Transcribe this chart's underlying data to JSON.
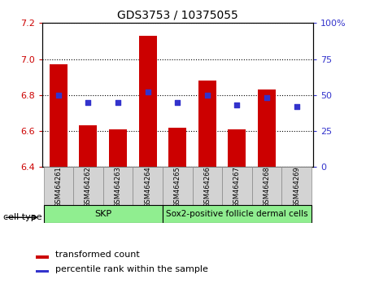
{
  "title": "GDS3753 / 10375055",
  "samples": [
    "GSM464261",
    "GSM464262",
    "GSM464263",
    "GSM464264",
    "GSM464265",
    "GSM464266",
    "GSM464267",
    "GSM464268",
    "GSM464269"
  ],
  "transformed_count": [
    6.97,
    6.63,
    6.61,
    7.13,
    6.62,
    6.88,
    6.61,
    6.83,
    6.4
  ],
  "percentile_rank": [
    50,
    45,
    45,
    52,
    45,
    50,
    43,
    48,
    42
  ],
  "ylim_left": [
    6.4,
    7.2
  ],
  "ylim_right": [
    0,
    100
  ],
  "left_yticks": [
    6.4,
    6.6,
    6.8,
    7.0,
    7.2
  ],
  "right_yticks": [
    0,
    25,
    50,
    75,
    100
  ],
  "right_yticklabels": [
    "0",
    "25",
    "50",
    "75",
    "100%"
  ],
  "bar_color": "#cc0000",
  "dot_color": "#3333cc",
  "bar_bottom": 6.4,
  "skp_count": 4,
  "cell_type_labels": [
    "SKP",
    "Sox2-positive follicle dermal cells"
  ],
  "cell_type_color": "#90ee90",
  "cell_type_label": "cell type",
  "legend_items": [
    {
      "color": "#cc0000",
      "label": "transformed count"
    },
    {
      "color": "#3333cc",
      "label": "percentile rank within the sample"
    }
  ],
  "tick_color_left": "#cc0000",
  "tick_color_right": "#3333cc",
  "title_fontsize": 10,
  "axis_fontsize": 8,
  "label_fontsize": 6,
  "legend_fontsize": 8
}
